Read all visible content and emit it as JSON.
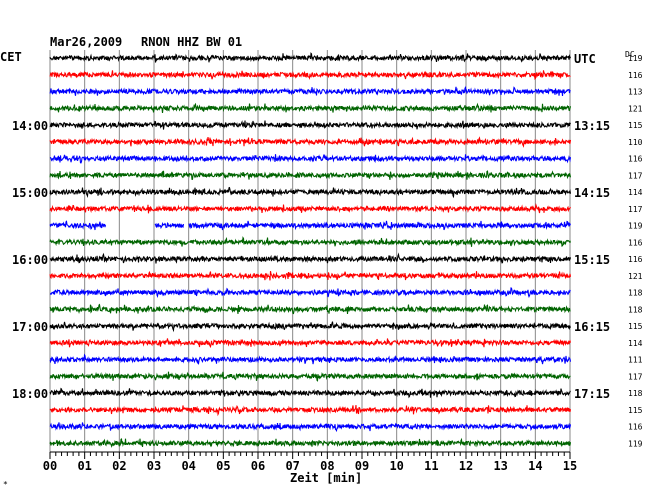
{
  "header": {
    "date": "Mar26,2009",
    "station": "RNON HHZ BW 01"
  },
  "left_tz": "CET",
  "right_tz": "UTC",
  "dc_header": "DC",
  "corner_mark": "*",
  "chart_data": {
    "type": "line",
    "title": "Mar26,2009   RNON HHZ BW 01",
    "xlabel": "Zeit [min]",
    "ylabel": "",
    "x_tick_labels": [
      "00",
      "01",
      "02",
      "03",
      "04",
      "05",
      "06",
      "07",
      "08",
      "09",
      "10",
      "11",
      "12",
      "13",
      "14",
      "15"
    ],
    "xlim": [
      0,
      15
    ],
    "grid": true,
    "trace_colors": [
      "#000000",
      "#ff0000",
      "#0000ff",
      "#006400"
    ],
    "left_hour_labels": [
      {
        "trace": 4,
        "label": "14:00"
      },
      {
        "trace": 8,
        "label": "15:00"
      },
      {
        "trace": 12,
        "label": "16:00"
      },
      {
        "trace": 16,
        "label": "17:00"
      },
      {
        "trace": 20,
        "label": "18:00"
      }
    ],
    "right_hour_labels": [
      {
        "trace": 0,
        "label": "UTC"
      },
      {
        "trace": 4,
        "label": "13:15"
      },
      {
        "trace": 8,
        "label": "14:15"
      },
      {
        "trace": 12,
        "label": "15:15"
      },
      {
        "trace": 16,
        "label": "16:15"
      },
      {
        "trace": 20,
        "label": "17:15"
      }
    ],
    "dc_offsets": [
      "119",
      "116",
      "113",
      "121",
      "115",
      "110",
      "116",
      "117",
      "114",
      "117",
      "119",
      "116",
      "116",
      "121",
      "118",
      "118",
      "115",
      "114",
      "111",
      "117",
      "118",
      "115",
      "116",
      "119"
    ],
    "gaps": [
      {
        "trace": 10,
        "from_min": 1.6,
        "to_min": 3.0
      },
      {
        "trace": 10,
        "from_min": 3.85,
        "to_min": 4.0
      }
    ]
  }
}
